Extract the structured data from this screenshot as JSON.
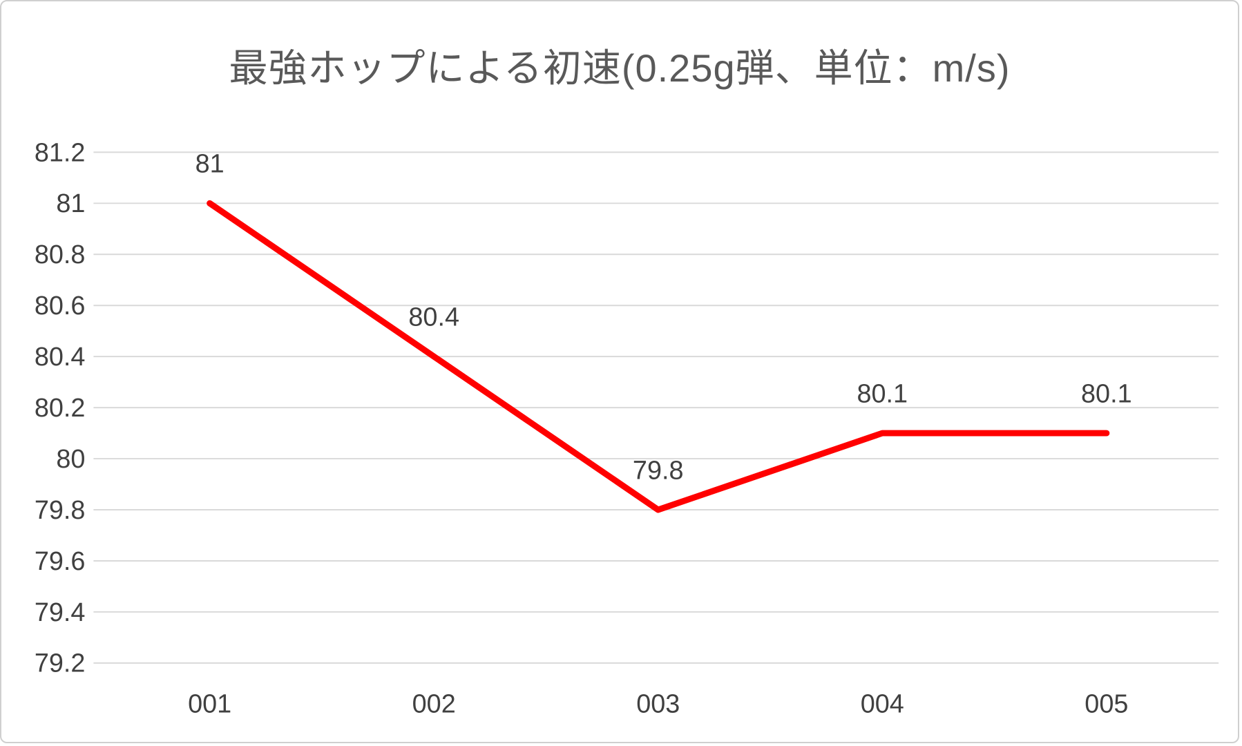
{
  "chart_data": {
    "type": "line",
    "title": "最強ホップによる初速(0.25g弾、単位：m/s)",
    "categories": [
      "001",
      "002",
      "003",
      "004",
      "005"
    ],
    "series": [
      {
        "values": [
          81,
          80.4,
          79.8,
          80.1,
          80.1
        ]
      }
    ],
    "data_labels": [
      "81",
      "80.4",
      "79.8",
      "80.1",
      "80.1"
    ],
    "xlabel": "",
    "ylabel": "",
    "ylim": [
      79.2,
      81.2
    ],
    "ytick_step": 0.2,
    "ytick_labels": [
      "79.2",
      "79.4",
      "79.6",
      "79.8",
      "80",
      "80.2",
      "80.4",
      "80.6",
      "80.8",
      "81",
      "81.2"
    ],
    "grid": true,
    "legend": false,
    "colors": {
      "line": "#FF0000",
      "title_text": "#595959",
      "axis_text": "#404040",
      "gridline": "#D9D9D9",
      "frame_border": "#CFCFCF",
      "background": "#FFFFFF"
    }
  }
}
